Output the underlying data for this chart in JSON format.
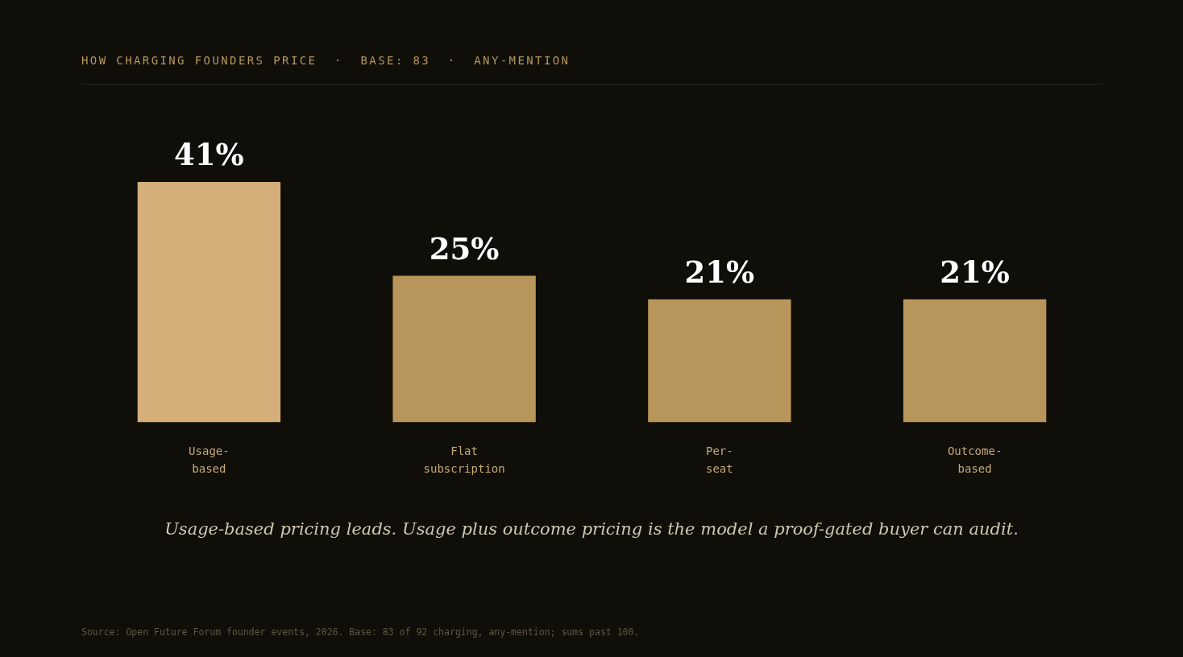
{
  "chart_data": {
    "type": "bar",
    "title": "HOW CHARGING FOUNDERS PRICE  ·  BASE: 83  ·  ANY-MENTION",
    "categories": [
      "Usage-based",
      "Flat subscription",
      "Per-seat",
      "Outcome-based"
    ],
    "values": [
      41,
      25,
      21,
      21
    ],
    "colors": [
      "#d4af7a",
      "#b8965b",
      "#b8965b",
      "#b8965b"
    ],
    "value_labels": [
      "41%",
      "25%",
      "21%",
      "21%"
    ],
    "legend": false,
    "tick_labels": "x",
    "annotations": [
      "Usage-based pricing leads. Usage plus outcome pricing is the model a proof-gated buyer can audit.",
      "Source: Open Future Forum founder events, 2026. Base: 83 of 92 charging, any-mention; sums past 100."
    ]
  }
}
